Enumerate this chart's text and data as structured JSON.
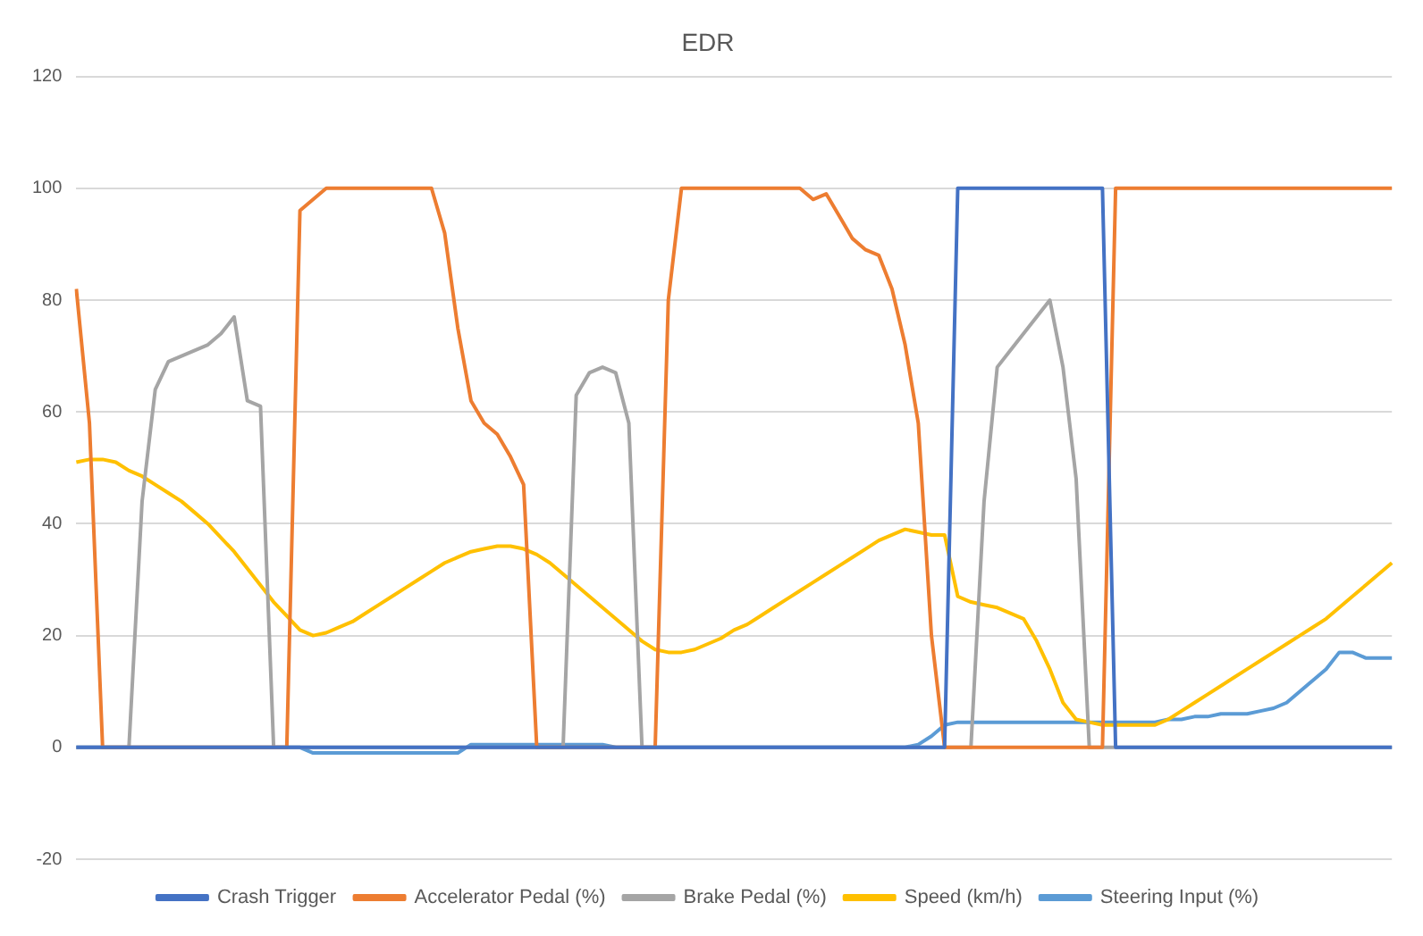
{
  "chart_data": {
    "type": "line",
    "title": "EDR",
    "categories": [
      null,
      null,
      null,
      null,
      null,
      null,
      null,
      null,
      null,
      null,
      null,
      null,
      null,
      null,
      null,
      null,
      null,
      null,
      null,
      null,
      null,
      null,
      null,
      null,
      null,
      null,
      null,
      null,
      null,
      null,
      null,
      null,
      null,
      null,
      null,
      null,
      null,
      null,
      null,
      null,
      null,
      null,
      null,
      null,
      null,
      null,
      null,
      null,
      null,
      null,
      null,
      null,
      null,
      null,
      null,
      null,
      null,
      null,
      null,
      null,
      null,
      null,
      null,
      null,
      null,
      null,
      null,
      null,
      null,
      null,
      null,
      null,
      null,
      null,
      null,
      null,
      null,
      null,
      null,
      null,
      null,
      null,
      null,
      null,
      null,
      null,
      null,
      null,
      null,
      null,
      null,
      null,
      null,
      null,
      null,
      null,
      null,
      null,
      null,
      null,
      null
    ],
    "series": [
      {
        "name": "Crash Trigger",
        "color": "#4472c4",
        "values": [
          0,
          0,
          0,
          0,
          0,
          0,
          0,
          0,
          0,
          0,
          0,
          0,
          0,
          0,
          0,
          0,
          0,
          0,
          0,
          0,
          0,
          0,
          0,
          0,
          0,
          0,
          0,
          0,
          0,
          0,
          0,
          0,
          0,
          0,
          0,
          0,
          0,
          0,
          0,
          0,
          0,
          0,
          0,
          0,
          0,
          0,
          0,
          0,
          0,
          0,
          0,
          0,
          0,
          0,
          0,
          0,
          0,
          0,
          0,
          0,
          0,
          0,
          0,
          0,
          0,
          0,
          0,
          100,
          100,
          100,
          100,
          100,
          100,
          100,
          100,
          100,
          100,
          100,
          100,
          0,
          0,
          0,
          0,
          0,
          0,
          0,
          0,
          0,
          0,
          0,
          0,
          0,
          0,
          0,
          0,
          0,
          0,
          0,
          0,
          0,
          0
        ]
      },
      {
        "name": "Accelerator Pedal (%)",
        "color": "#ed7d31",
        "values": [
          82,
          58,
          0,
          0,
          0,
          0,
          0,
          0,
          0,
          0,
          0,
          0,
          0,
          0,
          0,
          0,
          0,
          96,
          98,
          100,
          100,
          100,
          100,
          100,
          100,
          100,
          100,
          100,
          92,
          75,
          62,
          58,
          56,
          52,
          47,
          0,
          0,
          0,
          0,
          0,
          0,
          0,
          0,
          0,
          0,
          80,
          100,
          100,
          100,
          100,
          100,
          100,
          100,
          100,
          100,
          100,
          98,
          99,
          95,
          91,
          89,
          88,
          82,
          72,
          58,
          20,
          0,
          0,
          0,
          0,
          0,
          0,
          0,
          0,
          0,
          0,
          0,
          0,
          0,
          100,
          100,
          100,
          100,
          100,
          100,
          100,
          100,
          100,
          100,
          100,
          100,
          100,
          100,
          100,
          100,
          100,
          100,
          100,
          100,
          100,
          100
        ]
      },
      {
        "name": "Brake Pedal (%)",
        "color": "#a5a5a5",
        "values": [
          0,
          0,
          0,
          0,
          0,
          44,
          64,
          69,
          70,
          71,
          72,
          74,
          77,
          62,
          61,
          0,
          0,
          0,
          0,
          0,
          0,
          0,
          0,
          0,
          0,
          0,
          0,
          0,
          0,
          0,
          0,
          0,
          0,
          0,
          0,
          0,
          0,
          0,
          63,
          67,
          68,
          67,
          58,
          0,
          0,
          0,
          0,
          0,
          0,
          0,
          0,
          0,
          0,
          0,
          0,
          0,
          0,
          0,
          0,
          0,
          0,
          0,
          0,
          0,
          0,
          0,
          0,
          0,
          0,
          44,
          68,
          71,
          74,
          77,
          80,
          68,
          48,
          0,
          0,
          0,
          0,
          0,
          0,
          0,
          0,
          0,
          0,
          0,
          0,
          0,
          0,
          0,
          0,
          0,
          0,
          0,
          0,
          0,
          0,
          0,
          0
        ]
      },
      {
        "name": "Speed (km/h)",
        "color": "#ffc000",
        "values": [
          51,
          51.5,
          51.5,
          51,
          49.5,
          48.5,
          47,
          45.5,
          44,
          42,
          40,
          37.5,
          35,
          32,
          29,
          26,
          23.5,
          21,
          20,
          20.5,
          21.5,
          22.5,
          24,
          25.5,
          27,
          28.5,
          30,
          31.5,
          33,
          34,
          35,
          35.5,
          36,
          36,
          35.5,
          34.5,
          33,
          31,
          29,
          27,
          25,
          23,
          21,
          19,
          17.5,
          17,
          17,
          17.5,
          18.5,
          19.5,
          21,
          22,
          23.5,
          25,
          26.5,
          28,
          29.5,
          31,
          32.5,
          34,
          35.5,
          37,
          38,
          39,
          38.5,
          38,
          38,
          27,
          26,
          25.5,
          25,
          24,
          23,
          19,
          14,
          8,
          5,
          4.5,
          4,
          4,
          4,
          4,
          4,
          5,
          6.5,
          8,
          9.5,
          11,
          12.5,
          14,
          15.5,
          17,
          18.5,
          20,
          21.5,
          23,
          25,
          27,
          29,
          31,
          33
        ]
      },
      {
        "name": "Steering Input (%)",
        "color": "#5b9bd5",
        "values": [
          0,
          0,
          0,
          0,
          0,
          0,
          0,
          0,
          0,
          0,
          0,
          0,
          0,
          0,
          0,
          0,
          0,
          0,
          -1,
          -1,
          -1,
          -1,
          -1,
          -1,
          -1,
          -1,
          -1,
          -1,
          -1,
          -1,
          0.5,
          0.5,
          0.5,
          0.5,
          0.5,
          0.5,
          0.5,
          0.5,
          0.5,
          0.5,
          0.5,
          0,
          0,
          0,
          0,
          0,
          0,
          0,
          0,
          0,
          0,
          0,
          0,
          0,
          0,
          0,
          0,
          0,
          0,
          0,
          0,
          0,
          0,
          0,
          0.5,
          2,
          4,
          4.5,
          4.5,
          4.5,
          4.5,
          4.5,
          4.5,
          4.5,
          4.5,
          4.5,
          4.5,
          4.5,
          4.5,
          4.5,
          4.5,
          4.5,
          4.5,
          5,
          5,
          5.5,
          5.5,
          6,
          6,
          6,
          6.5,
          7,
          8,
          10,
          12,
          14,
          17,
          17,
          16,
          16,
          16
        ]
      }
    ],
    "ylim": [
      -20,
      120
    ],
    "yticks": [
      -20,
      0,
      20,
      40,
      60,
      80,
      100,
      120
    ],
    "grid": "y",
    "legend": "bottom",
    "marker": "none",
    "line_style": "solid"
  }
}
